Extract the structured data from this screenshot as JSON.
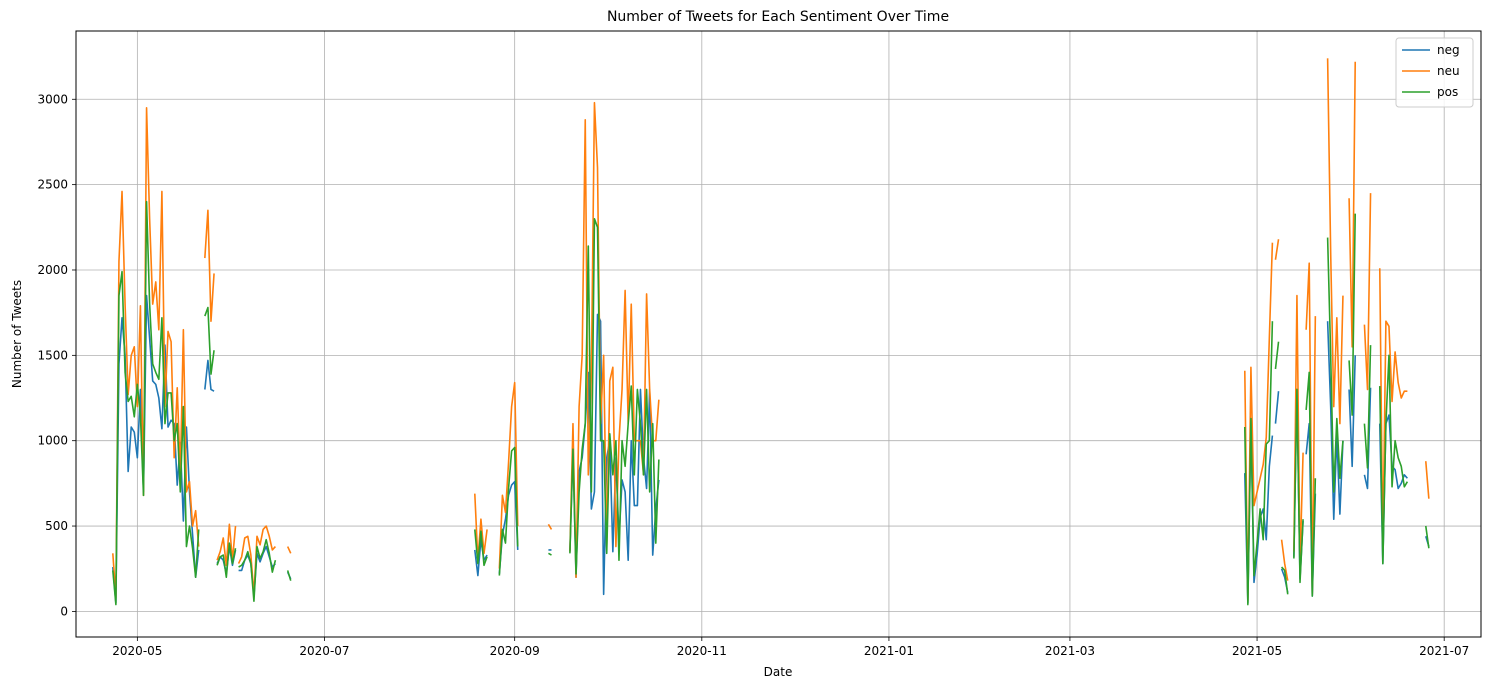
{
  "chart_data": {
    "type": "line",
    "title": "Number of Tweets for Each Sentiment Over Time",
    "xlabel": "Date",
    "ylabel": "Number of Tweets",
    "xlim": [
      "2020-04-11",
      "2021-07-13"
    ],
    "ylim": [
      -150,
      3400
    ],
    "x_ticks": [
      "2020-05-01",
      "2020-07-01",
      "2020-09-01",
      "2020-11-01",
      "2021-01-01",
      "2021-03-01",
      "2021-05-01",
      "2021-07-01"
    ],
    "x_tick_labels": [
      "2020-05",
      "2020-07",
      "2020-09",
      "2020-11",
      "2021-01",
      "2021-03",
      "2021-05",
      "2021-07"
    ],
    "y_ticks": [
      0,
      500,
      1000,
      1500,
      2000,
      2500,
      3000
    ],
    "y_tick_labels": [
      "0",
      "500",
      "1000",
      "1500",
      "2000",
      "2500",
      "3000"
    ],
    "grid": true,
    "legend_position": "top-right",
    "series": [
      {
        "name": "neg",
        "color": "#1f77b4",
        "segments": [
          {
            "start": "2020-04-23",
            "values": [
              260,
              50,
              1450,
              1720,
              1500,
              820,
              1080,
              1050,
              900,
              1300,
              700,
              1850,
              1600,
              1350,
              1330,
              1250,
              1070,
              1560,
              1080,
              1120,
              1100,
              740,
              990,
              530,
              1080,
              700,
              450,
              200,
              360
            ]
          },
          {
            "start": "2020-05-23",
            "values": [
              1300,
              1470,
              1300,
              1290
            ]
          },
          {
            "start": "2020-05-27",
            "values": [
              280,
              320,
              300,
              220,
              380,
              270,
              360
            ]
          },
          {
            "start": "2020-06-03",
            "values": [
              240,
              240,
              300,
              330,
              280,
              90,
              340,
              290,
              340,
              380,
              320,
              260,
              280
            ]
          },
          {
            "start": "2020-06-19",
            "values": [
              230,
              190
            ]
          },
          {
            "start": "2020-08-19",
            "values": [
              360,
              210,
              420,
              300,
              330
            ]
          },
          {
            "start": "2020-08-27",
            "values": [
              220,
              450,
              540,
              680,
              740,
              760,
              360
            ]
          },
          {
            "start": "2020-09-12",
            "values": [
              360,
              360
            ]
          },
          {
            "start": "2020-09-19",
            "values": [
              350,
              940,
              200,
              820,
              900,
              1100,
              1400,
              600,
              700,
              1740,
              1700,
              100,
              900,
              1000,
              350,
              900,
              420,
              770,
              700,
              300,
              1000,
              620,
              620,
              1300,
              900,
              720,
              1300,
              330,
              600,
              770
            ]
          },
          {
            "start": "2021-04-27",
            "values": [
              810,
              50,
              1100,
              170,
              330,
              550,
              600,
              420,
              850,
              1030
            ]
          },
          {
            "start": "2021-05-07",
            "values": [
              1100,
              1290
            ]
          },
          {
            "start": "2021-05-09",
            "values": [
              250,
              200,
              110
            ]
          },
          {
            "start": "2021-05-13",
            "values": [
              320,
              1300,
              190,
              530
            ]
          },
          {
            "start": "2021-05-17",
            "values": [
              920,
              1100,
              90,
              690
            ]
          },
          {
            "start": "2021-05-24",
            "values": [
              1700,
              1200,
              540,
              1030,
              570,
              1000
            ]
          },
          {
            "start": "2021-05-31",
            "values": [
              1300,
              850,
              1500
            ]
          },
          {
            "start": "2021-06-05",
            "values": [
              800,
              720,
              1310
            ]
          },
          {
            "start": "2021-06-10",
            "values": [
              1100,
              280,
              1100,
              1150,
              850,
              830,
              720,
              750,
              800,
              780
            ]
          },
          {
            "start": "2021-06-25",
            "values": [
              440,
              380
            ]
          }
        ]
      },
      {
        "name": "neu",
        "color": "#ff7f0e",
        "segments": [
          {
            "start": "2020-04-23",
            "values": [
              340,
              80,
              2050,
              2460,
              1800,
              1270,
              1500,
              1550,
              1200,
              1790,
              680,
              2950,
              2300,
              1800,
              1930,
              1650,
              2460,
              1200,
              1640,
              1580,
              900,
              1310,
              800,
              1650,
              700,
              760,
              500,
              590,
              380
            ]
          },
          {
            "start": "2020-05-23",
            "values": [
              2070,
              2350,
              1700,
              1980
            ]
          },
          {
            "start": "2020-05-27",
            "values": [
              300,
              350,
              430,
              270,
              510,
              300,
              500
            ]
          },
          {
            "start": "2020-06-03",
            "values": [
              280,
              320,
              430,
              440,
              330,
              100,
              440,
              390,
              480,
              500,
              440,
              360,
              380
            ]
          },
          {
            "start": "2020-06-19",
            "values": [
              380,
              340
            ]
          },
          {
            "start": "2020-08-19",
            "values": [
              690,
              300,
              540,
              340,
              480
            ]
          },
          {
            "start": "2020-08-27",
            "values": [
              250,
              680,
              580,
              870,
              1200,
              1340,
              500
            ]
          },
          {
            "start": "2020-09-12",
            "values": [
              510,
              480
            ]
          },
          {
            "start": "2020-09-19",
            "values": [
              350,
              1100,
              200,
              1200,
              1500,
              2880,
              800,
              1400,
              2980,
              2600,
              1100,
              1500,
              380,
              1350,
              1430,
              380,
              1000,
              1300,
              1880,
              1100,
              1800,
              1000,
              1000,
              1000,
              800,
              1860,
              1300,
              1000,
              1000,
              1240
            ]
          },
          {
            "start": "2021-04-27",
            "values": [
              1410,
              60,
              1430,
              620,
              700,
              780,
              860,
              1020,
              1600,
              2160
            ]
          },
          {
            "start": "2021-05-07",
            "values": [
              2060,
              2180
            ]
          },
          {
            "start": "2021-05-09",
            "values": [
              420,
              280,
              180
            ]
          },
          {
            "start": "2021-05-13",
            "values": [
              350,
              1850,
              270,
              930
            ]
          },
          {
            "start": "2021-05-17",
            "values": [
              1650,
              2040,
              100,
              1730
            ]
          },
          {
            "start": "2021-05-24",
            "values": [
              3240,
              2100,
              1200,
              1720,
              1100,
              1850
            ]
          },
          {
            "start": "2021-05-31",
            "values": [
              2420,
              1550,
              3220
            ]
          },
          {
            "start": "2021-06-05",
            "values": [
              1680,
              1300,
              2450
            ]
          },
          {
            "start": "2021-06-10",
            "values": [
              2010,
              360,
              1700,
              1670,
              1230,
              1520,
              1340,
              1250,
              1290,
              1290
            ]
          },
          {
            "start": "2021-06-25",
            "values": [
              880,
              660
            ]
          }
        ]
      },
      {
        "name": "pos",
        "color": "#2ca02c",
        "segments": [
          {
            "start": "2020-04-23",
            "values": [
              240,
              40,
              1850,
              1990,
              1400,
              1230,
              1260,
              1140,
              1330,
              1150,
              680,
              2400,
              1800,
              1450,
              1400,
              1360,
              1720,
              1100,
              1280,
              1280,
              1000,
              1100,
              700,
              1200,
              380,
              500,
              370,
              200,
              480
            ]
          },
          {
            "start": "2020-05-23",
            "values": [
              1730,
              1780,
              1390,
              1530
            ]
          },
          {
            "start": "2020-05-27",
            "values": [
              270,
              320,
              330,
              200,
              400,
              280,
              370
            ]
          },
          {
            "start": "2020-06-03",
            "values": [
              260,
              270,
              300,
              350,
              280,
              60,
              380,
              310,
              350,
              420,
              340,
              230,
              300
            ]
          },
          {
            "start": "2020-06-19",
            "values": [
              240,
              180
            ]
          },
          {
            "start": "2020-08-19",
            "values": [
              480,
              280,
              470,
              270,
              320
            ]
          },
          {
            "start": "2020-08-27",
            "values": [
              210,
              480,
              400,
              720,
              940,
              960,
              380
            ]
          },
          {
            "start": "2020-09-12",
            "values": [
              340,
              330
            ]
          },
          {
            "start": "2020-09-19",
            "values": [
              340,
              950,
              220,
              700,
              950,
              1100,
              2140,
              700,
              2300,
              2250,
              1000,
              1000,
              340,
              1040,
              800,
              1000,
              300,
              1000,
              850,
              1100,
              1320,
              800,
              1300,
              1100,
              800,
              1300,
              700,
              1100,
              400,
              890
            ]
          },
          {
            "start": "2021-04-27",
            "values": [
              1080,
              40,
              1130,
              210,
              400,
              600,
              420,
              980,
              1000,
              1700
            ]
          },
          {
            "start": "2021-05-07",
            "values": [
              1420,
              1580
            ]
          },
          {
            "start": "2021-05-09",
            "values": [
              260,
              240,
              100
            ]
          },
          {
            "start": "2021-05-13",
            "values": [
              310,
              1300,
              170,
              540
            ]
          },
          {
            "start": "2021-05-17",
            "values": [
              1180,
              1400,
              90,
              780
            ]
          },
          {
            "start": "2021-05-24",
            "values": [
              2190,
              1500,
              700,
              1130,
              780,
              1000
            ]
          },
          {
            "start": "2021-05-31",
            "values": [
              1470,
              1150,
              2330
            ]
          },
          {
            "start": "2021-06-05",
            "values": [
              1100,
              840,
              1560
            ]
          },
          {
            "start": "2021-06-10",
            "values": [
              1320,
              280,
              1100,
              1500,
              730,
              1000,
              900,
              850,
              730,
              760
            ]
          },
          {
            "start": "2021-06-25",
            "values": [
              500,
              370
            ]
          }
        ]
      }
    ]
  }
}
